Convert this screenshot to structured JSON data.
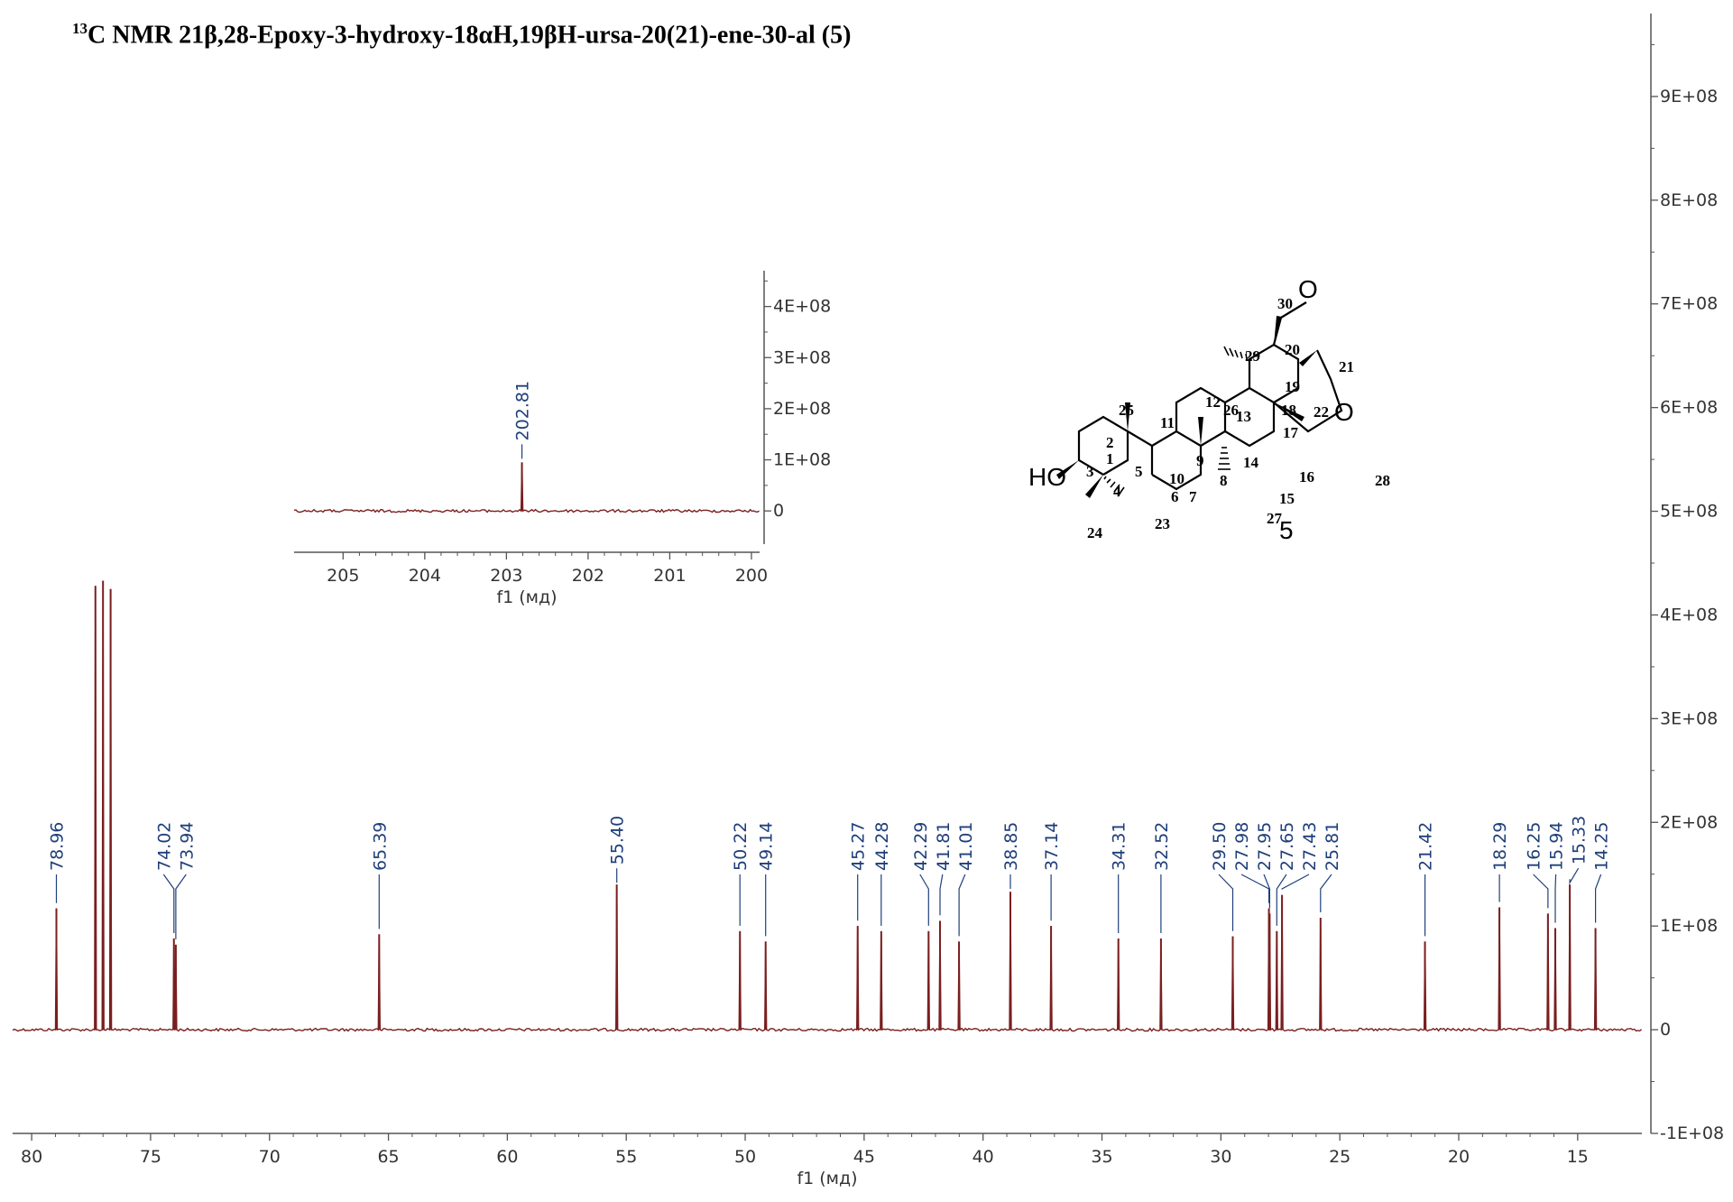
{
  "title": {
    "sup": "13",
    "text": "C NMR 21β,28-Epoxy-3-hydroxy-18αH,19βH-ursa-20(21)-ene-30-al (5)"
  },
  "chart_data": [
    {
      "type": "line",
      "name": "main-spectrum",
      "xlabel": "f1 (мд)",
      "xlim": [
        80.8,
        12.3
      ],
      "ylim": [
        -1,
        9.8
      ],
      "y_unit": "1E+08",
      "x_ticks": [
        "80",
        "75",
        "70",
        "65",
        "60",
        "55",
        "50",
        "45",
        "40",
        "35",
        "30",
        "25",
        "20",
        "15"
      ],
      "y_ticks": [
        "-1E+08",
        "0",
        "1E+08",
        "2E+08",
        "3E+08",
        "4E+08",
        "5E+08",
        "6E+08",
        "7E+08",
        "8E+08",
        "9E+08"
      ],
      "peaks": [
        {
          "ppm": 78.96,
          "height": 1.17
        },
        {
          "ppm": 77.32,
          "height": 4.28
        },
        {
          "ppm": 77.0,
          "height": 4.33
        },
        {
          "ppm": 76.68,
          "height": 4.25
        },
        {
          "ppm": 74.02,
          "height": 0.88
        },
        {
          "ppm": 73.94,
          "height": 0.82
        },
        {
          "ppm": 65.39,
          "height": 0.92
        },
        {
          "ppm": 55.4,
          "height": 1.4
        },
        {
          "ppm": 50.22,
          "height": 0.95
        },
        {
          "ppm": 49.14,
          "height": 0.85
        },
        {
          "ppm": 45.27,
          "height": 1.0
        },
        {
          "ppm": 44.28,
          "height": 0.95
        },
        {
          "ppm": 42.29,
          "height": 0.95
        },
        {
          "ppm": 41.81,
          "height": 1.05
        },
        {
          "ppm": 41.01,
          "height": 0.85
        },
        {
          "ppm": 38.85,
          "height": 1.33
        },
        {
          "ppm": 37.14,
          "height": 1.0
        },
        {
          "ppm": 34.31,
          "height": 0.88
        },
        {
          "ppm": 32.52,
          "height": 0.88
        },
        {
          "ppm": 29.5,
          "height": 0.9
        },
        {
          "ppm": 27.98,
          "height": 1.17
        },
        {
          "ppm": 27.95,
          "height": 1.12
        },
        {
          "ppm": 27.65,
          "height": 0.95
        },
        {
          "ppm": 27.43,
          "height": 1.3
        },
        {
          "ppm": 25.81,
          "height": 1.08
        },
        {
          "ppm": 21.42,
          "height": 0.85
        },
        {
          "ppm": 18.29,
          "height": 1.18
        },
        {
          "ppm": 16.25,
          "height": 1.12
        },
        {
          "ppm": 15.94,
          "height": 0.98
        },
        {
          "ppm": 15.33,
          "height": 1.4
        },
        {
          "ppm": 14.25,
          "height": 0.98
        }
      ],
      "labels": [
        "78.96",
        "74.02",
        "73.94",
        "65.39",
        "55.40",
        "50.22",
        "49.14",
        "45.27",
        "44.28",
        "42.29",
        "41.81",
        "41.01",
        "38.85",
        "37.14",
        "34.31",
        "32.52",
        "29.50",
        "27.98",
        "27.95",
        "27.65",
        "27.43",
        "25.81",
        "21.42",
        "18.29",
        "16.25",
        "15.94",
        "15.33",
        "14.25"
      ],
      "color": "#7a1f1f",
      "label_color": "#1f3f7a"
    },
    {
      "type": "line",
      "name": "inset-spectrum",
      "xlabel": "f1 (мд)",
      "xlim": [
        205.6,
        199.9
      ],
      "ylim": [
        -0.65,
        4.7
      ],
      "y_unit": "1E+08",
      "x_ticks": [
        "205",
        "204",
        "203",
        "202",
        "201",
        "200"
      ],
      "y_ticks": [
        "0",
        "1E+08",
        "2E+08",
        "3E+08",
        "4E+08"
      ],
      "peaks": [
        {
          "ppm": 202.81,
          "height": 0.95
        }
      ],
      "labels": [
        "202.81"
      ],
      "color": "#7a1f1f",
      "label_color": "#1f3f7a"
    }
  ],
  "structure": {
    "compound_number": "5",
    "hydroxyl": "HO",
    "oxygen": "O",
    "carbon_labels": [
      "1",
      "2",
      "3",
      "4",
      "5",
      "6",
      "7",
      "8",
      "9",
      "10",
      "11",
      "12",
      "13",
      "14",
      "15",
      "16",
      "17",
      "18",
      "19",
      "20",
      "21",
      "22",
      "23",
      "24",
      "25",
      "26",
      "27",
      "28",
      "29",
      "30"
    ]
  }
}
